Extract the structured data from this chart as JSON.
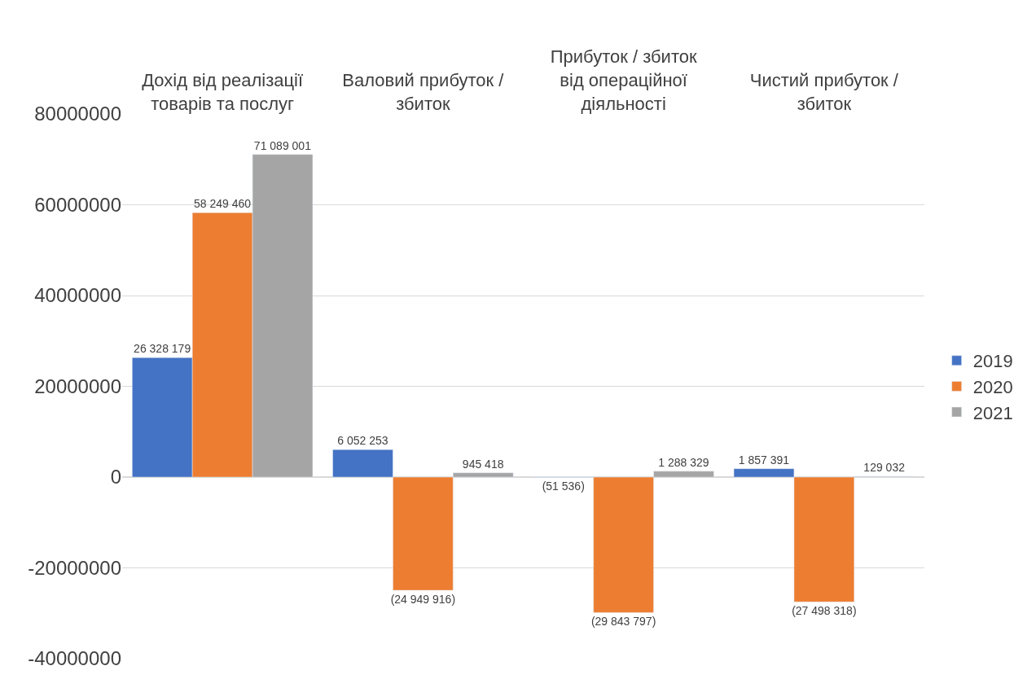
{
  "chart_data": {
    "type": "bar",
    "categories": [
      "Дохід від реалізації товарів та послуг",
      "Валовий прибуток / збиток",
      "Прибуток / збиток від операційної діяльності",
      "Чистий прибуток / збиток"
    ],
    "series": [
      {
        "name": "2019",
        "color": "#4472c4",
        "values": [
          26328179,
          6052253,
          -51536,
          1857391
        ],
        "value_labels": [
          "26 328 179",
          "6 052 253",
          "(51 536)",
          "1 857 391"
        ]
      },
      {
        "name": "2020",
        "color": "#ed7d31",
        "values": [
          58249460,
          -24949916,
          -29843797,
          -27498318
        ],
        "value_labels": [
          "58 249 460",
          "(24 949 916)",
          "(29 843 797)",
          "(27 498 318)"
        ]
      },
      {
        "name": "2021",
        "color": "#a5a5a5",
        "values": [
          71089001,
          945418,
          1288329,
          129032
        ],
        "value_labels": [
          "71 089 001",
          "945 418",
          "1 288 329",
          "129 032"
        ]
      }
    ],
    "ylim": [
      -40000000,
      80000000
    ],
    "yticks": [
      -40000000,
      -20000000,
      0,
      20000000,
      40000000,
      60000000,
      80000000
    ],
    "grid": "y",
    "legend": "right"
  }
}
